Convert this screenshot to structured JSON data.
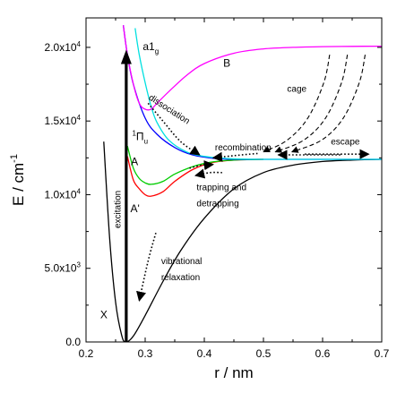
{
  "chart_data": {
    "type": "line",
    "xlabel": "r / nm",
    "ylabel": "E / cm",
    "ylabel_sup": "-1",
    "xlim": [
      0.2,
      0.7
    ],
    "ylim": [
      0,
      22000
    ],
    "x_ticks": [
      {
        "value": 0.2,
        "label": "0.2"
      },
      {
        "value": 0.3,
        "label": "0.3"
      },
      {
        "value": 0.4,
        "label": "0.4"
      },
      {
        "value": 0.5,
        "label": "0.5"
      },
      {
        "value": 0.6,
        "label": "0.6"
      },
      {
        "value": 0.7,
        "label": "0.7"
      }
    ],
    "y_ticks": [
      {
        "value": 0,
        "label": "0.0"
      },
      {
        "value": 5000,
        "label": "5.0x10",
        "sup": "3"
      },
      {
        "value": 10000,
        "label": "1.0x10",
        "sup": "4"
      },
      {
        "value": 15000,
        "label": "1.5x10",
        "sup": "4"
      },
      {
        "value": 20000,
        "label": "2.0x10",
        "sup": "4"
      }
    ],
    "grid": false,
    "series": [
      {
        "name": "X",
        "color": "#000000",
        "x": [
          0.23,
          0.24,
          0.25,
          0.26,
          0.267,
          0.28,
          0.3,
          0.33,
          0.36,
          0.4,
          0.45,
          0.5,
          0.55,
          0.6,
          0.65,
          0.7
        ],
        "y": [
          13600,
          7000,
          2700,
          500,
          0,
          400,
          1800,
          4100,
          6200,
          8400,
          10400,
          11500,
          12000,
          12250,
          12350,
          12400
        ]
      },
      {
        "name": "A'",
        "color": "#ff0000",
        "x": [
          0.27,
          0.28,
          0.29,
          0.3,
          0.31,
          0.33,
          0.35,
          0.38,
          0.41,
          0.45,
          0.5
        ],
        "y": [
          12600,
          11000,
          10400,
          10000,
          9900,
          10200,
          10900,
          11700,
          12150,
          12350,
          12400
        ]
      },
      {
        "name": "A",
        "color": "#00cc00",
        "x": [
          0.27,
          0.28,
          0.29,
          0.3,
          0.31,
          0.33,
          0.35,
          0.38,
          0.41,
          0.45,
          0.5
        ],
        "y": [
          13300,
          11800,
          11100,
          10800,
          10700,
          10900,
          11400,
          11900,
          12200,
          12350,
          12400
        ]
      },
      {
        "name": "1Πu",
        "color": "#0000ff",
        "x": [
          0.263,
          0.27,
          0.28,
          0.3,
          0.32,
          0.35,
          0.38,
          0.42,
          0.46,
          0.5,
          0.55,
          0.6,
          0.7
        ],
        "y": [
          21500,
          19500,
          17500,
          15200,
          14100,
          13200,
          12700,
          12450,
          12400,
          12400,
          12400,
          12400,
          12400
        ]
      },
      {
        "name": "a1g",
        "color": "#00e0e0",
        "x": [
          0.283,
          0.29,
          0.3,
          0.31,
          0.32,
          0.34,
          0.37,
          0.4,
          0.44,
          0.5,
          0.6,
          0.7
        ],
        "y": [
          21300,
          19500,
          17600,
          16000,
          14900,
          13700,
          12900,
          12600,
          12450,
          12400,
          12400,
          12400
        ]
      },
      {
        "name": "B",
        "color": "#ff00ff",
        "x": [
          0.263,
          0.27,
          0.28,
          0.29,
          0.3,
          0.31,
          0.32,
          0.34,
          0.37,
          0.4,
          0.45,
          0.5,
          0.55,
          0.6,
          0.65,
          0.7
        ],
        "y": [
          21500,
          19500,
          17500,
          16200,
          15800,
          15800,
          16200,
          17000,
          18100,
          18900,
          19600,
          19900,
          20000,
          20050,
          20070,
          20080
        ]
      }
    ],
    "series_labels": [
      {
        "text": "X",
        "x": 0.224,
        "y": 1600
      },
      {
        "text": "A'",
        "x": 0.275,
        "y": 8800
      },
      {
        "text": "A",
        "x": 0.276,
        "y": 12000
      },
      {
        "text": "Π",
        "pre": "1",
        "sub": "u",
        "x": 0.278,
        "y": 13700
      },
      {
        "text": "a1",
        "sub": "g",
        "x": 0.296,
        "y": 19800
      },
      {
        "text": "B",
        "x": 0.432,
        "y": 18700
      }
    ],
    "excitation_arrow": {
      "x": 0.268,
      "y_from": 0,
      "y_to": 19600
    },
    "dotted_arrows": [
      {
        "name": "dissociation",
        "points": [
          [
            0.305,
            16200
          ],
          [
            0.33,
            15000
          ],
          [
            0.36,
            13600
          ],
          [
            0.392,
            12700
          ]
        ]
      },
      {
        "name": "recombination",
        "points": [
          [
            0.49,
            12800
          ],
          [
            0.45,
            12650
          ],
          [
            0.415,
            12500
          ]
        ]
      },
      {
        "name": "escape-left",
        "points": [
          [
            0.63,
            12700
          ],
          [
            0.56,
            12700
          ],
          [
            0.525,
            12700
          ]
        ]
      },
      {
        "name": "escape-right",
        "points": [
          [
            0.57,
            12750
          ],
          [
            0.62,
            12750
          ],
          [
            0.678,
            12750
          ]
        ]
      },
      {
        "name": "trapping",
        "points": [
          [
            0.375,
            11800
          ],
          [
            0.395,
            12000
          ],
          [
            0.415,
            12050
          ]
        ]
      },
      {
        "name": "detrapping",
        "points": [
          [
            0.43,
            11500
          ],
          [
            0.41,
            11500
          ],
          [
            0.385,
            11300
          ]
        ]
      },
      {
        "name": "relaxation",
        "points": [
          [
            0.318,
            7400
          ],
          [
            0.305,
            5500
          ],
          [
            0.29,
            2800
          ]
        ]
      }
    ],
    "dashed_arrows": [
      {
        "name": "cage-1",
        "points": [
          [
            0.612,
            19500
          ],
          [
            0.602,
            17600
          ],
          [
            0.575,
            15200
          ],
          [
            0.54,
            13700
          ],
          [
            0.5,
            12900
          ]
        ]
      },
      {
        "name": "cage-2",
        "points": [
          [
            0.642,
            19500
          ],
          [
            0.632,
            17600
          ],
          [
            0.605,
            15200
          ],
          [
            0.568,
            13700
          ],
          [
            0.52,
            12900
          ]
        ]
      },
      {
        "name": "cage-3",
        "points": [
          [
            0.672,
            19500
          ],
          [
            0.662,
            17600
          ],
          [
            0.635,
            15200
          ],
          [
            0.598,
            13700
          ],
          [
            0.548,
            12900
          ]
        ]
      }
    ],
    "annotations": [
      {
        "text": "dissociation",
        "x": 0.305,
        "y": 16500,
        "rotate": 33
      },
      {
        "text": "recombination",
        "x": 0.418,
        "y": 13000,
        "rotate": 0
      },
      {
        "text": "escape",
        "x": 0.614,
        "y": 13400,
        "rotate": 0
      },
      {
        "text": "cage",
        "x": 0.54,
        "y": 17000,
        "rotate": 0
      },
      {
        "text": "trapping and",
        "x": 0.387,
        "y": 10300,
        "rotate": 0
      },
      {
        "text": "detrapping",
        "x": 0.387,
        "y": 9200,
        "rotate": 0
      },
      {
        "text": "vibrational",
        "x": 0.327,
        "y": 5300,
        "rotate": 0
      },
      {
        "text": "relaxation",
        "x": 0.327,
        "y": 4200,
        "rotate": 0
      },
      {
        "text": "excitation",
        "x": 0.258,
        "y": 9000,
        "rotate": -90
      }
    ]
  }
}
